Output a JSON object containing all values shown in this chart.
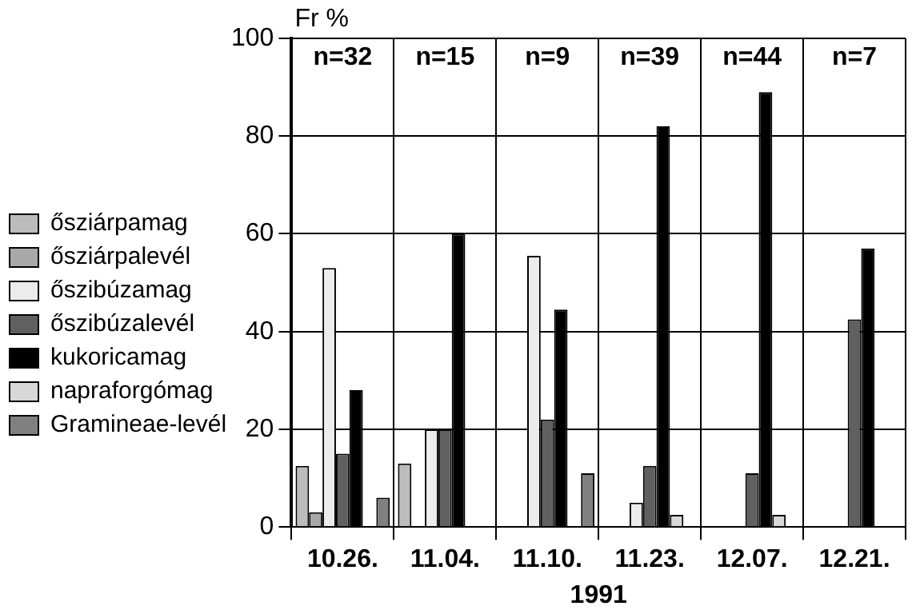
{
  "chart_data": {
    "type": "bar",
    "ylabel": "Fr %",
    "xlabel": "1991",
    "categories": [
      "10.26.",
      "11.04.",
      "11.10.",
      "11.23.",
      "12.07.",
      "12.21."
    ],
    "series": [
      {
        "name": "ősziárpamag",
        "color": "#bcbcbc",
        "values": [
          12.5,
          13,
          0,
          0,
          0,
          0
        ]
      },
      {
        "name": "ősziárpalevél",
        "color": "#a8a8a8",
        "values": [
          3,
          0,
          0,
          0,
          0,
          0
        ]
      },
      {
        "name": "őszibúzamag",
        "color": "#ececec",
        "values": [
          53,
          20,
          55.5,
          5,
          0,
          0
        ]
      },
      {
        "name": "őszibúzalevél",
        "color": "#606060",
        "values": [
          15,
          20,
          22,
          12.5,
          11,
          42.5
        ]
      },
      {
        "name": "kukoricamag",
        "color": "#000000",
        "values": [
          28,
          60,
          44.5,
          82,
          89,
          57
        ]
      },
      {
        "name": "napraforgómag",
        "color": "#d8d8d8",
        "values": [
          0,
          0,
          0,
          2.5,
          2.5,
          0
        ]
      },
      {
        "name": "Gramineae-levél",
        "color": "#808080",
        "values": [
          6,
          0,
          11,
          0,
          0,
          0
        ]
      }
    ],
    "ylim": [
      0,
      100
    ],
    "yticks": [
      0,
      20,
      40,
      60,
      80,
      100
    ],
    "grid": true,
    "legend": "left",
    "annotations": [
      "n=32",
      "n=15",
      "n=9",
      "n=39",
      "n=44",
      "n=7"
    ]
  }
}
